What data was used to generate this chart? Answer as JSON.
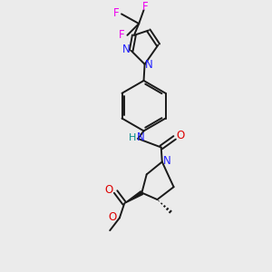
{
  "bg_color": "#ebebeb",
  "bond_color": "#1a1a1a",
  "N_color": "#2020ff",
  "O_color": "#dd0000",
  "F_color": "#ee00ee",
  "H_color": "#008888",
  "figsize": [
    3.0,
    3.0
  ],
  "dpi": 100,
  "xlim": [
    55,
    235
  ],
  "ylim": [
    15,
    295
  ]
}
